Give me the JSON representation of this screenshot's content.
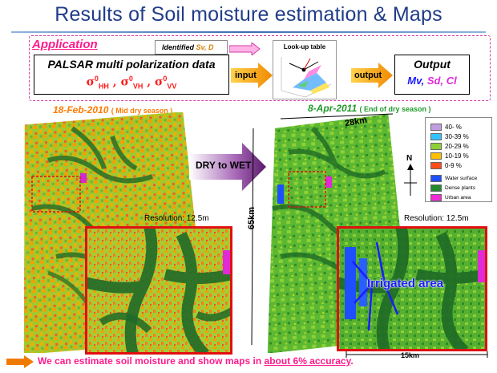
{
  "slide": {
    "title": "Results of Soil moisture estimation & Maps"
  },
  "application": {
    "label": "Application",
    "identified_prefix": "Identified",
    "identified_vars": "Sv, D",
    "input_title": "PALSAR multi polarization data",
    "input_sigma": {
      "s1": "σ",
      "s1_sup": "0",
      "s1_sub": "HH",
      "s2": "σ",
      "s2_sup": "0",
      "s2_sub": "VH",
      "s3": "σ",
      "s3_sup": "0",
      "s3_sub": "VV",
      "sep": " , "
    },
    "input_label": "input",
    "lut_title": "Look-up table",
    "output_label": "output",
    "output_title": "Output",
    "output_vars": {
      "mv": "Mv",
      "sd": "Sd",
      "cl": "Cl",
      "sep": ", "
    }
  },
  "maps": {
    "left_date": "18-Feb-2010",
    "left_season": "( Mid dry season )",
    "right_date": "8-Apr-2011",
    "right_season": "( End of dry season )",
    "transition_label": "DRY to WET",
    "scale_top": "28km",
    "scale_left": "65km",
    "scale_bottom": "15km",
    "resolution_left": "Resolution:  12.5m",
    "resolution_right": "Resolution:  12.5m",
    "north": "N",
    "annotation": "Irrigated area"
  },
  "legend": [
    {
      "label": "40- %",
      "color": "#c39bdf",
      "small": false
    },
    {
      "label": "30-39 %",
      "color": "#33c4ff",
      "small": false
    },
    {
      "label": "20-29 %",
      "color": "#8ed036",
      "small": false
    },
    {
      "label": "10-19 %",
      "color": "#ffc000",
      "small": false
    },
    {
      "label": "0-9 %",
      "color": "#ff4d1a",
      "small": false
    },
    {
      "label": "Water surface",
      "color": "#1e4fff",
      "small": true
    },
    {
      "label": "Dense plants",
      "color": "#1f8a2e",
      "small": true
    },
    {
      "label": "Urban area",
      "color": "#f02ad6",
      "small": true
    }
  ],
  "conclusion": {
    "prefix": "We can estimate soil moisture and show maps in ",
    "emphasis": "about 6% accuracy",
    "suffix": "."
  },
  "colors": {
    "title": "#1f3c88",
    "accent_pink": "#ff1a8c",
    "frame_red": "#e01010",
    "arrow_orange": "#f0a000"
  }
}
